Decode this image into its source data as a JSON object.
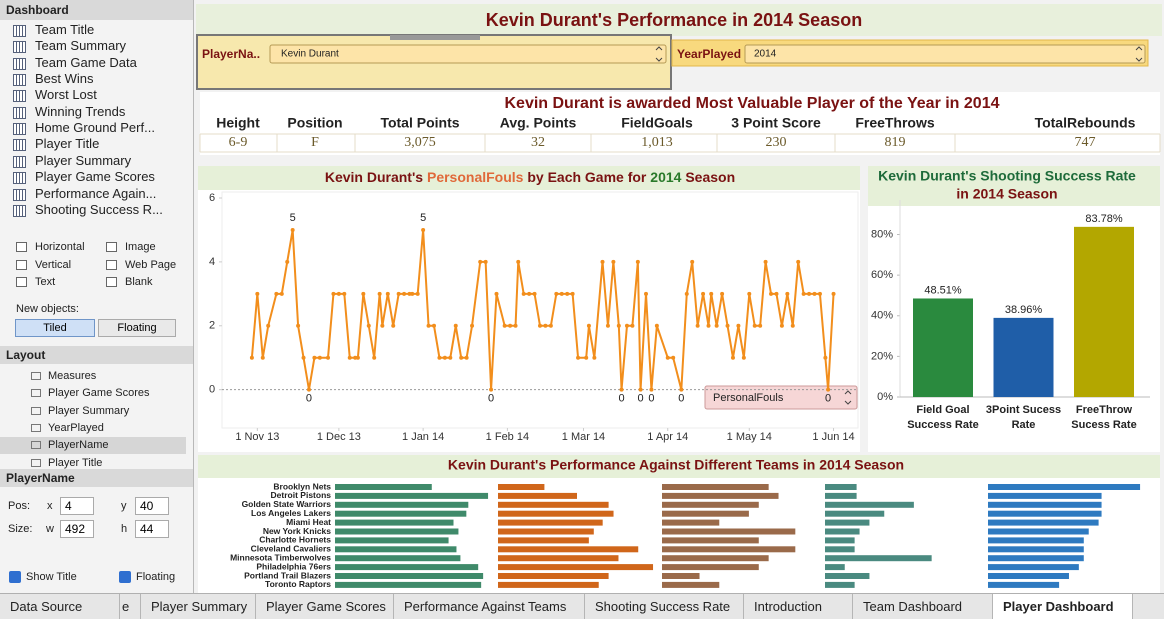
{
  "sidebar": {
    "dashboard_header": "Dashboard",
    "sheets": [
      "Team Title",
      "Team Summary",
      "Team Game Data",
      "Best Wins",
      "Worst Lost",
      "Winning Trends",
      "Home Ground Perf...",
      "Player Title",
      "Player Summary",
      "Player Game Scores",
      "Performance Again...",
      "Shooting Success R..."
    ],
    "objects": [
      "Horizontal",
      "Image",
      "Vertical",
      "Web Page",
      "Text",
      "Blank"
    ],
    "new_objects_label": "New objects:",
    "tiled": "Tiled",
    "floating": "Floating",
    "layout_header": "Layout",
    "layout_items": [
      "Measures",
      "Player Game Scores",
      "Player Summary",
      "YearPlayed",
      "PlayerName",
      "Player Title"
    ],
    "selection_header": "PlayerName",
    "pos_label": "Pos:",
    "x_label": "x",
    "x_value": "4",
    "y_label": "y",
    "y_value": "40",
    "size_label": "Size:",
    "w_label": "w",
    "w_value": "492",
    "h_label": "h",
    "h_value": "44",
    "show_title": "Show Title",
    "floating_check": "Floating"
  },
  "dashboard": {
    "title": "Kevin Durant's Performance in 2014 Season",
    "filters": [
      {
        "label": "PlayerNa..",
        "value": "Kevin Durant"
      },
      {
        "label": "YearPlayed",
        "value": "2014"
      }
    ],
    "summary": {
      "title": "Kevin Durant is awarded Most Valuable Player of the Year in 2014",
      "headers": [
        "Height",
        "Position",
        "Total Points",
        "Avg. Points",
        "FieldGoals",
        "3 Point Score",
        "FreeThrows",
        "TotalRebounds"
      ],
      "values": [
        "6-9",
        "F",
        "3,075",
        "32",
        "1,013",
        "230",
        "819",
        "747"
      ]
    }
  },
  "chart_data": [
    {
      "type": "line",
      "title_parts": [
        "Kevin Durant's ",
        "PersonalFouls",
        " by Each Game for ",
        "2014",
        " Season"
      ],
      "x": [
        "2013-10-30",
        "2013-11-01",
        "2013-11-03",
        "2013-11-05",
        "2013-11-08",
        "2013-11-10",
        "2013-11-12",
        "2013-11-14",
        "2013-11-16",
        "2013-11-18",
        "2013-11-20",
        "2013-11-22",
        "2013-11-24",
        "2013-11-27",
        "2013-11-29",
        "2013-12-01",
        "2013-12-03",
        "2013-12-05",
        "2013-12-07",
        "2013-12-08",
        "2013-12-10",
        "2013-12-12",
        "2013-12-14",
        "2013-12-16",
        "2013-12-17",
        "2013-12-19",
        "2013-12-21",
        "2013-12-23",
        "2013-12-25",
        "2013-12-27",
        "2013-12-28",
        "2013-12-30",
        "2014-01-01",
        "2014-01-03",
        "2014-01-05",
        "2014-01-07",
        "2014-01-09",
        "2014-01-11",
        "2014-01-13",
        "2014-01-15",
        "2014-01-17",
        "2014-01-19",
        "2014-01-22",
        "2014-01-24",
        "2014-01-26",
        "2014-01-28",
        "2014-01-31",
        "2014-02-02",
        "2014-02-04",
        "2014-02-05",
        "2014-02-07",
        "2014-02-09",
        "2014-02-11",
        "2014-02-13",
        "2014-02-15",
        "2014-02-17",
        "2014-02-19",
        "2014-02-21",
        "2014-02-23",
        "2014-02-25",
        "2014-02-27",
        "2014-03-02",
        "2014-03-03",
        "2014-03-05",
        "2014-03-08",
        "2014-03-10",
        "2014-03-12",
        "2014-03-14",
        "2014-03-15",
        "2014-03-17",
        "2014-03-19",
        "2014-03-21",
        "2014-03-22",
        "2014-03-24",
        "2014-03-26",
        "2014-03-28",
        "2014-04-01",
        "2014-04-03",
        "2014-04-06",
        "2014-04-08",
        "2014-04-10",
        "2014-04-12",
        "2014-04-14",
        "2014-04-16",
        "2014-04-17",
        "2014-04-19",
        "2014-04-21",
        "2014-04-23",
        "2014-04-25",
        "2014-04-27",
        "2014-04-29",
        "2014-05-01",
        "2014-05-03",
        "2014-05-05",
        "2014-05-07",
        "2014-05-09",
        "2014-05-11",
        "2014-05-13",
        "2014-05-15",
        "2014-05-17",
        "2014-05-19",
        "2014-05-21",
        "2014-05-23",
        "2014-05-25",
        "2014-05-27",
        "2014-05-29",
        "2014-05-30",
        "2014-06-01"
      ],
      "series": [
        {
          "name": "PersonalFouls",
          "color": "#f28e1c",
          "values": [
            1,
            3,
            1,
            2,
            3,
            3,
            4,
            5,
            2,
            1,
            0,
            1,
            1,
            1,
            3,
            3,
            3,
            1,
            1,
            1,
            3,
            2,
            1,
            3,
            2,
            3,
            2,
            3,
            3,
            3,
            3,
            3,
            5,
            2,
            2,
            1,
            1,
            1,
            2,
            1,
            1,
            2,
            4,
            4,
            0,
            3,
            2,
            2,
            2,
            4,
            3,
            3,
            3,
            2,
            2,
            2,
            3,
            3,
            3,
            3,
            1,
            1,
            2,
            1,
            4,
            2,
            4,
            2,
            0,
            2,
            2,
            4,
            0,
            3,
            0,
            2,
            1,
            1,
            0,
            3,
            4,
            2,
            3,
            2,
            3,
            2,
            3,
            2,
            1,
            2,
            1,
            3,
            2,
            2,
            4,
            3,
            3,
            2,
            3,
            2,
            4,
            3,
            3,
            3,
            3,
            1,
            0,
            3
          ]
        }
      ],
      "xlim": [
        "2013-10-19",
        "2014-06-10"
      ],
      "xticks": [
        {
          "value": "2013-11-01",
          "label": "1 Nov 13"
        },
        {
          "value": "2013-12-01",
          "label": "1 Dec 13"
        },
        {
          "value": "2014-01-01",
          "label": "1 Jan 14"
        },
        {
          "value": "2014-02-01",
          "label": "1 Feb 14"
        },
        {
          "value": "2014-03-01",
          "label": "1 Mar 14"
        },
        {
          "value": "2014-04-01",
          "label": "1 Apr 14"
        },
        {
          "value": "2014-05-01",
          "label": "1 May 14"
        },
        {
          "value": "2014-06-01",
          "label": "1 Jun 14"
        }
      ],
      "ylim": [
        -1.2,
        6
      ],
      "yticks": [
        0,
        2,
        4,
        6
      ],
      "grid": false
    },
    {
      "type": "bar",
      "title_lines": [
        "Kevin Durant's Shooting Success Rate",
        "in 2014 Season"
      ],
      "categories": [
        "Field Goal Success Rate",
        "3Point Sucess Rate",
        "FreeThrow Sucess Rate"
      ],
      "values": [
        48.51,
        38.96,
        83.78
      ],
      "value_labels": [
        "48.51%",
        "38.96%",
        "83.78%"
      ],
      "colors": [
        "#2a8a3e",
        "#1f5ea8",
        "#b3a700"
      ],
      "ylim": [
        0,
        97
      ],
      "yticks": [
        {
          "value": 0,
          "label": "0%"
        },
        {
          "value": 20,
          "label": "20%"
        },
        {
          "value": 40,
          "label": "40%"
        },
        {
          "value": 60,
          "label": "60%"
        },
        {
          "value": 80,
          "label": "80%"
        }
      ]
    },
    {
      "type": "bar",
      "orientation": "horizontal",
      "title": "Kevin Durant's Performance Against Different Teams in 2014 Season",
      "categories": [
        "Brooklyn Nets",
        "Detroit Pistons",
        "Golden State Warriors",
        "Los Angeles Lakers",
        "Miami Heat",
        "New York Knicks",
        "Charlotte Hornets",
        "Cleveland Cavaliers",
        "Minnesota Timberwolves",
        "Philadelphia 76ers",
        "Portland Trail Blazers",
        "Toronto Raptors"
      ],
      "xlim": [
        0,
        160
      ],
      "series": [
        {
          "color": "#3f8a6a",
          "values": [
            98,
            155,
            135,
            133,
            120,
            125,
            115,
            123,
            127,
            145,
            150,
            148
          ]
        },
        {
          "color": "#d0661a",
          "values": [
            47,
            80,
            112,
            117,
            106,
            97,
            92,
            142,
            122,
            157,
            112,
            102
          ]
        },
        {
          "color": "#9a6a4a",
          "values": [
            108,
            118,
            98,
            88,
            58,
            135,
            98,
            135,
            108,
            98,
            38,
            58
          ]
        },
        {
          "color": "#4a8a80",
          "values": [
            32,
            32,
            90,
            60,
            45,
            35,
            30,
            30,
            108,
            20,
            45,
            30
          ]
        },
        {
          "color": "#2e7ac0",
          "values": [
            154,
            115,
            115,
            115,
            112,
            102,
            97,
            97,
            97,
            92,
            82,
            72
          ]
        }
      ]
    }
  ],
  "tabs": [
    "Data Source",
    "e",
    "Player Summary",
    "Player Game Scores",
    "Performance Against Teams",
    "Shooting Success Rate",
    "Introduction",
    "Team Dashboard",
    "Player Dashboard"
  ]
}
